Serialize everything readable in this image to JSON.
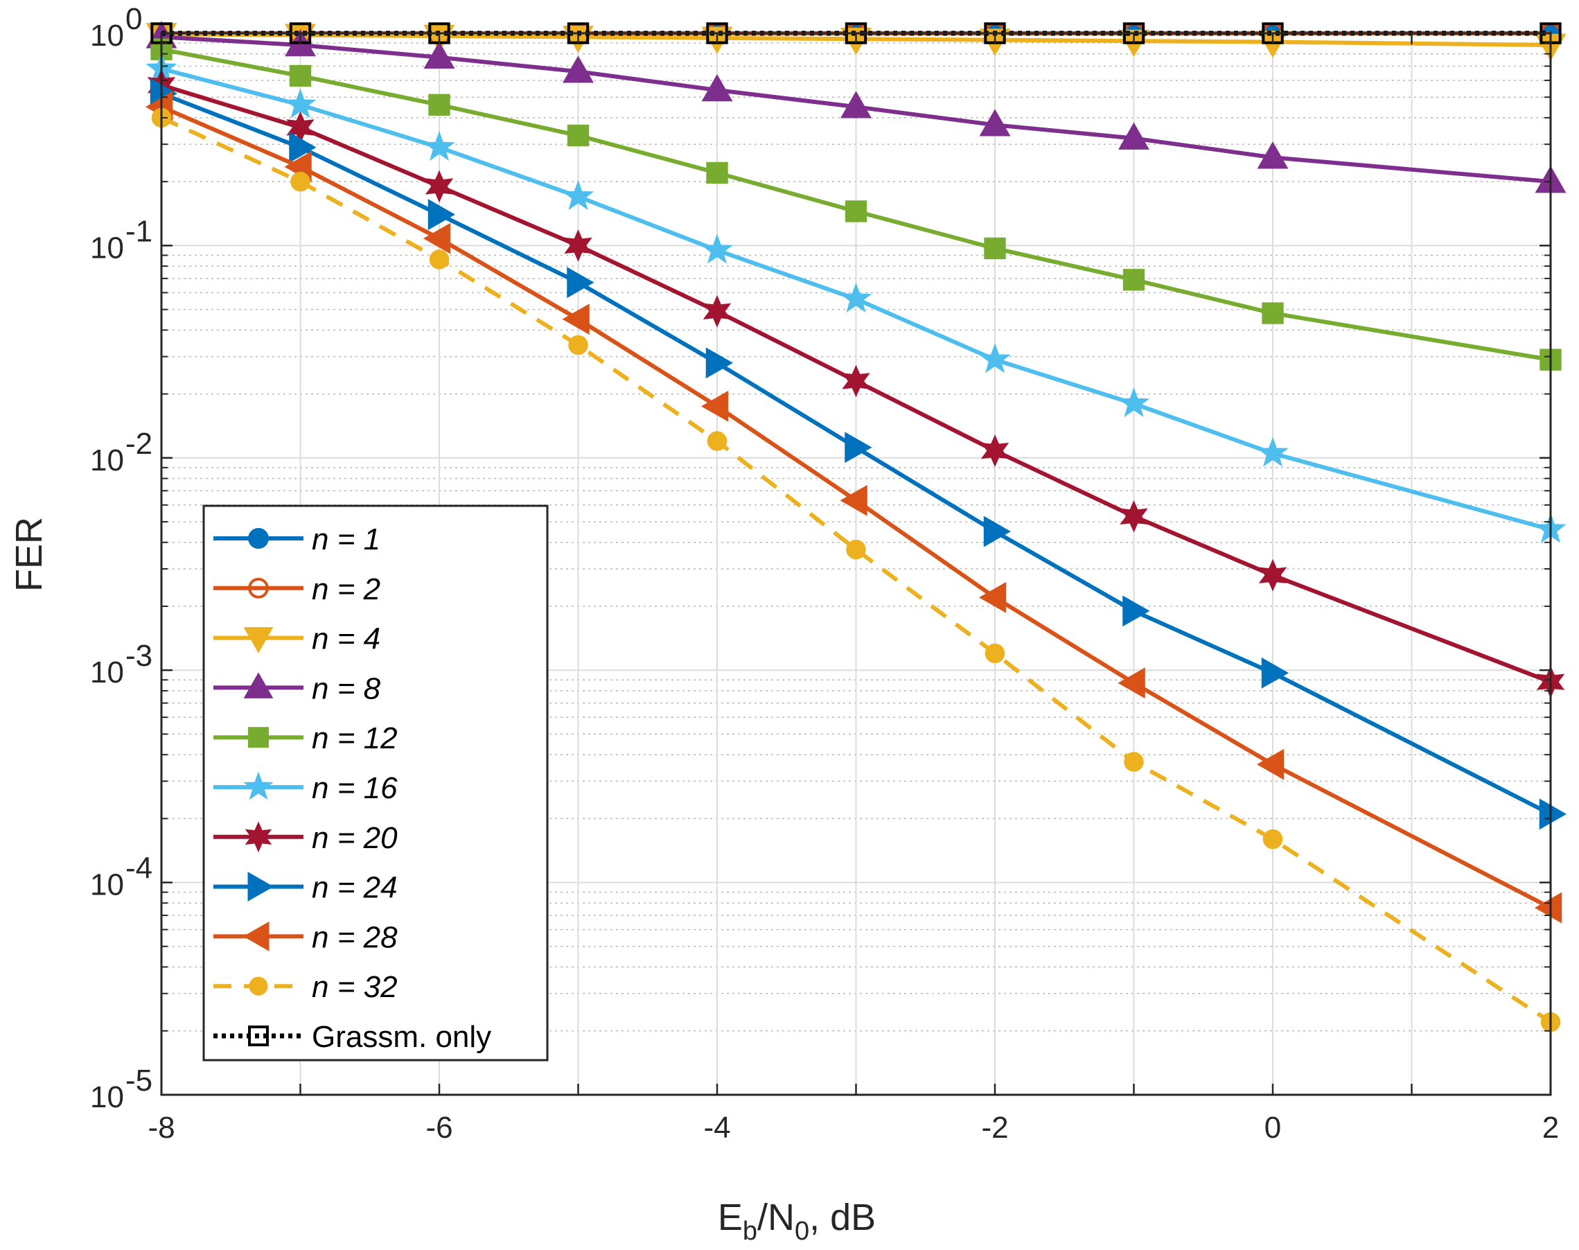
{
  "chart_data": {
    "type": "line",
    "title": "",
    "xlabel": "E_b/N_0, dB",
    "xlabel_parts": {
      "E": "E",
      "b": "b",
      "slash": "/N",
      "zero": "0",
      "tail": ", dB"
    },
    "ylabel": "FER",
    "xscale": "linear",
    "yscale": "log",
    "xlim": [
      -8,
      2
    ],
    "ylim": [
      1e-05,
      1
    ],
    "xticks": [
      -8,
      -6,
      -4,
      -2,
      0,
      2
    ],
    "xtick_labels": [
      "-8",
      "-6",
      "-4",
      "-2",
      "0",
      "2"
    ],
    "yticks": [
      1e-05,
      0.0001,
      0.001,
      0.01,
      0.1,
      1
    ],
    "ytick_labels": [
      {
        "base": "10",
        "exp": "-5"
      },
      {
        "base": "10",
        "exp": "-4"
      },
      {
        "base": "10",
        "exp": "-3"
      },
      {
        "base": "10",
        "exp": "-2"
      },
      {
        "base": "10",
        "exp": "-1"
      },
      {
        "base": "10",
        "exp": "0"
      }
    ],
    "grid": true,
    "legend_position": "bottom-left",
    "x": [
      -8,
      -7,
      -6,
      -5,
      -4,
      -3,
      -2,
      -1,
      0,
      2
    ],
    "series": [
      {
        "name": "n = 1",
        "legend_prefix": "n",
        "legend_value": "=  1",
        "color": "#0072BD",
        "marker": "o",
        "filled": true,
        "dash": "solid",
        "values": [
          1,
          1,
          1,
          1,
          1,
          1,
          1,
          1,
          1,
          1
        ]
      },
      {
        "name": "n = 2",
        "legend_prefix": "n",
        "legend_value": "=  2",
        "color": "#D95319",
        "marker": "o",
        "filled": false,
        "dash": "solid",
        "values": [
          1,
          1,
          1,
          1,
          1,
          1,
          1,
          1,
          1,
          1
        ]
      },
      {
        "name": "n = 4",
        "legend_prefix": "n",
        "legend_value": "=  4",
        "color": "#EDB120",
        "marker": "v",
        "filled": true,
        "dash": "solid",
        "values": [
          0.99,
          0.98,
          0.97,
          0.96,
          0.95,
          0.94,
          0.93,
          0.92,
          0.91,
          0.88
        ]
      },
      {
        "name": "n = 8",
        "legend_prefix": "n",
        "legend_value": "=  8",
        "color": "#7E2F8E",
        "marker": "^",
        "filled": true,
        "dash": "solid",
        "values": [
          0.96,
          0.88,
          0.77,
          0.66,
          0.54,
          0.45,
          0.37,
          0.32,
          0.26,
          0.2
        ]
      },
      {
        "name": "n = 12",
        "legend_prefix": "n",
        "legend_value": "= 12",
        "color": "#77AC30",
        "marker": "s",
        "filled": true,
        "dash": "solid",
        "values": [
          0.84,
          0.63,
          0.46,
          0.33,
          0.22,
          0.145,
          0.097,
          0.069,
          0.048,
          0.029
        ]
      },
      {
        "name": "n = 16",
        "legend_prefix": "n",
        "legend_value": "= 16",
        "color": "#4DBEEE",
        "marker": "star5",
        "filled": true,
        "dash": "solid",
        "values": [
          0.68,
          0.46,
          0.29,
          0.17,
          0.095,
          0.056,
          0.029,
          0.018,
          0.0105,
          0.0046
        ]
      },
      {
        "name": "n = 20",
        "legend_prefix": "n",
        "legend_value": "= 20",
        "color": "#A2142F",
        "marker": "star6",
        "filled": true,
        "dash": "solid",
        "values": [
          0.57,
          0.36,
          0.19,
          0.1,
          0.049,
          0.023,
          0.0108,
          0.0053,
          0.0028,
          0.00088
        ]
      },
      {
        "name": "n = 24",
        "legend_prefix": "n",
        "legend_value": "= 24",
        "color": "#0072BD",
        "marker": ">",
        "filled": true,
        "dash": "solid",
        "values": [
          0.52,
          0.29,
          0.14,
          0.067,
          0.028,
          0.0112,
          0.0045,
          0.0019,
          0.00097,
          0.00021
        ]
      },
      {
        "name": "n = 28",
        "legend_prefix": "n",
        "legend_value": "= 28",
        "color": "#D95319",
        "marker": "<",
        "filled": true,
        "dash": "solid",
        "values": [
          0.45,
          0.235,
          0.108,
          0.045,
          0.0175,
          0.0063,
          0.0022,
          0.00087,
          0.00036,
          7.6e-05
        ]
      },
      {
        "name": "n = 32",
        "legend_prefix": "n",
        "legend_value": "= 32",
        "color": "#EDB120",
        "marker": "o",
        "filled": true,
        "dash": "dashed",
        "values": [
          0.4,
          0.2,
          0.086,
          0.034,
          0.012,
          0.0037,
          0.0012,
          0.00037,
          0.00016,
          2.2e-05
        ]
      },
      {
        "name": "Grassm. only",
        "legend_prefix": "",
        "legend_value": "Grassm. only",
        "color": "#000000",
        "marker": "s",
        "filled": false,
        "dash": "dotted",
        "values": [
          1,
          1,
          1,
          1,
          1,
          1,
          1,
          1,
          1,
          1
        ]
      }
    ]
  }
}
